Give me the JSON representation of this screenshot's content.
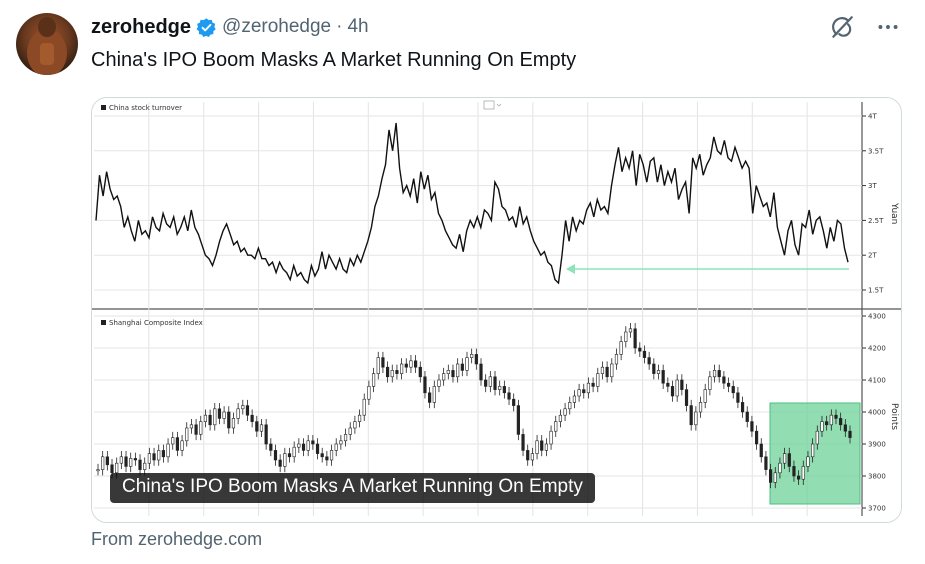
{
  "post": {
    "author_name": "zerohedge",
    "handle": "@zerohedge",
    "separator": "·",
    "time": "4h",
    "text": "China's IPO Boom Masks A Market Running On Empty",
    "card_caption": "China's IPO Boom Masks A Market Running On Empty",
    "source": "From zerohedge.com"
  },
  "icons": {
    "verified": "verified-badge-icon",
    "grok": "grok-icon",
    "more": "more-icon"
  },
  "colors": {
    "verified": "#1d9bf0",
    "arrow": "#8fe3b8",
    "highlight": "#6fd19a"
  },
  "chart_data": [
    {
      "type": "line",
      "legend": "China stock turnover",
      "ylabel": "Yuan",
      "yticks": [
        "4T",
        "3.5T",
        "3T",
        "2.5T",
        "2T",
        "1.5T"
      ],
      "ylim": [
        1.5,
        4.0
      ],
      "series": [
        {
          "values": [
            2.5,
            3.15,
            2.85,
            3.2,
            2.95,
            2.8,
            2.85,
            2.7,
            2.4,
            2.55,
            2.35,
            2.2,
            2.5,
            2.3,
            2.35,
            2.25,
            2.55,
            2.4,
            2.35,
            2.6,
            2.45,
            2.4,
            2.55,
            2.3,
            2.4,
            2.55,
            2.35,
            2.65,
            2.4,
            2.3,
            2.15,
            2.0,
            1.95,
            1.85,
            2.0,
            2.2,
            2.35,
            2.45,
            2.3,
            2.15,
            2.2,
            2.05,
            2.1,
            2.0,
            2.0,
            1.95,
            2.1,
            1.95,
            1.95,
            1.85,
            1.9,
            1.75,
            1.9,
            1.8,
            1.75,
            1.65,
            1.85,
            1.7,
            1.75,
            1.65,
            1.6,
            1.85,
            1.7,
            1.8,
            2.05,
            1.8,
            2.0,
            1.9,
            1.8,
            1.95,
            1.8,
            1.75,
            1.95,
            1.85,
            2.0,
            1.9,
            2.05,
            2.2,
            2.4,
            2.7,
            2.85,
            3.1,
            3.3,
            3.8,
            3.5,
            3.9,
            3.25,
            2.9,
            3.0,
            2.85,
            3.1,
            2.75,
            3.2,
            2.95,
            3.15,
            2.8,
            2.9,
            2.6,
            2.5,
            2.35,
            2.25,
            2.15,
            2.1,
            2.3,
            2.05,
            2.35,
            2.5,
            2.4,
            2.55,
            2.4,
            2.65,
            2.6,
            2.5,
            3.05,
            2.95,
            2.7,
            2.65,
            2.5,
            2.55,
            2.4,
            2.7,
            2.45,
            2.55,
            2.35,
            2.2,
            2.1,
            2.0,
            2.05,
            1.9,
            1.85,
            1.65,
            1.6,
            2.0,
            2.5,
            2.2,
            2.55,
            2.35,
            2.5,
            2.45,
            2.65,
            2.75,
            2.55,
            2.8,
            2.65,
            2.7,
            2.6,
            3.0,
            3.3,
            3.55,
            3.2,
            3.4,
            3.25,
            3.5,
            3.0,
            3.45,
            3.3,
            3.05,
            3.35,
            3.4,
            3.05,
            3.3,
            3.0,
            3.2,
            3.05,
            3.25,
            2.8,
            2.95,
            3.05,
            2.6,
            3.4,
            3.25,
            3.45,
            3.15,
            3.3,
            3.4,
            3.7,
            3.5,
            3.45,
            3.65,
            3.4,
            3.35,
            3.55,
            3.4,
            3.25,
            3.35,
            3.25,
            2.6,
            3.0,
            2.85,
            2.7,
            2.75,
            2.55,
            2.9,
            2.4,
            2.2,
            2.0,
            2.35,
            2.5,
            2.15,
            2.0,
            2.45,
            2.4,
            2.65,
            2.3,
            2.5,
            2.55,
            2.35,
            2.1,
            2.4,
            2.2,
            2.5,
            2.45,
            2.1,
            1.9
          ]
        }
      ],
      "annotations": [
        "arrow-pointing-left"
      ]
    },
    {
      "type": "candlestick",
      "legend": "Shanghai Composite Index",
      "ylabel": "Points",
      "yticks": [
        "4300",
        "4200",
        "4100",
        "4000",
        "3900",
        "3800",
        "3700"
      ],
      "ylim": [
        3700,
        4300
      ],
      "series": [
        {
          "values": [
            3820,
            3860,
            3835,
            3810,
            3840,
            3860,
            3830,
            3855,
            3850,
            3820,
            3840,
            3870,
            3850,
            3880,
            3860,
            3900,
            3920,
            3880,
            3910,
            3950,
            3960,
            3930,
            3970,
            3990,
            3960,
            4010,
            3980,
            4000,
            3950,
            3980,
            4010,
            4020,
            3990,
            3970,
            3940,
            3960,
            3900,
            3880,
            3850,
            3830,
            3870,
            3860,
            3890,
            3900,
            3880,
            3910,
            3900,
            3870,
            3860,
            3850,
            3880,
            3900,
            3910,
            3930,
            3950,
            3970,
            3990,
            4040,
            4080,
            4120,
            4170,
            4140,
            4110,
            4130,
            4120,
            4150,
            4140,
            4160,
            4140,
            4110,
            4060,
            4030,
            4080,
            4100,
            4120,
            4130,
            4110,
            4150,
            4130,
            4170,
            4180,
            4150,
            4100,
            4080,
            4110,
            4070,
            4080,
            4060,
            4040,
            4020,
            3930,
            3880,
            3850,
            3870,
            3910,
            3880,
            3900,
            3940,
            3970,
            3990,
            4010,
            4030,
            4050,
            4070,
            4060,
            4090,
            4080,
            4120,
            4140,
            4110,
            4150,
            4180,
            4220,
            4250,
            4260,
            4200,
            4190,
            4170,
            4150,
            4120,
            4130,
            4090,
            4080,
            4050,
            4100,
            4070,
            4020,
            3960,
            4000,
            4030,
            4070,
            4110,
            4130,
            4110,
            4090,
            4080,
            4060,
            4030,
            4000,
            3970,
            3940,
            3900,
            3860,
            3820,
            3780,
            3810,
            3840,
            3870,
            3830,
            3800,
            3790,
            3830,
            3860,
            3900,
            3940,
            3970,
            3960,
            3990,
            3980,
            3960,
            3940,
            3920
          ]
        }
      ],
      "annotations": [
        "highlighted-region"
      ]
    }
  ]
}
